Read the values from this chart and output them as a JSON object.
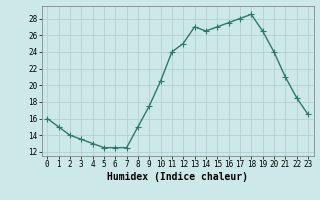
{
  "x": [
    0,
    1,
    2,
    3,
    4,
    5,
    6,
    7,
    8,
    9,
    10,
    11,
    12,
    13,
    14,
    15,
    16,
    17,
    18,
    19,
    20,
    21,
    22,
    23
  ],
  "y": [
    16,
    15,
    14,
    13.5,
    13,
    12.5,
    12.5,
    12.5,
    15,
    17.5,
    20.5,
    24,
    25,
    27,
    26.5,
    27,
    27.5,
    28,
    28.5,
    26.5,
    24,
    21,
    18.5,
    16.5
  ],
  "line_color": "#2d7a6a",
  "marker": "+",
  "marker_size": 4,
  "bg_color": "#cce8e8",
  "grid_color": "#b0cccc",
  "xlabel": "Humidex (Indice chaleur)",
  "xlim": [
    -0.5,
    23.5
  ],
  "ylim": [
    11.5,
    29.5
  ],
  "yticks": [
    12,
    14,
    16,
    18,
    20,
    22,
    24,
    26,
    28
  ],
  "xticks": [
    0,
    1,
    2,
    3,
    4,
    5,
    6,
    7,
    8,
    9,
    10,
    11,
    12,
    13,
    14,
    15,
    16,
    17,
    18,
    19,
    20,
    21,
    22,
    23
  ],
  "tick_label_fontsize": 5.5,
  "xlabel_fontsize": 7,
  "line_width": 1.0,
  "spine_color": "#888888"
}
